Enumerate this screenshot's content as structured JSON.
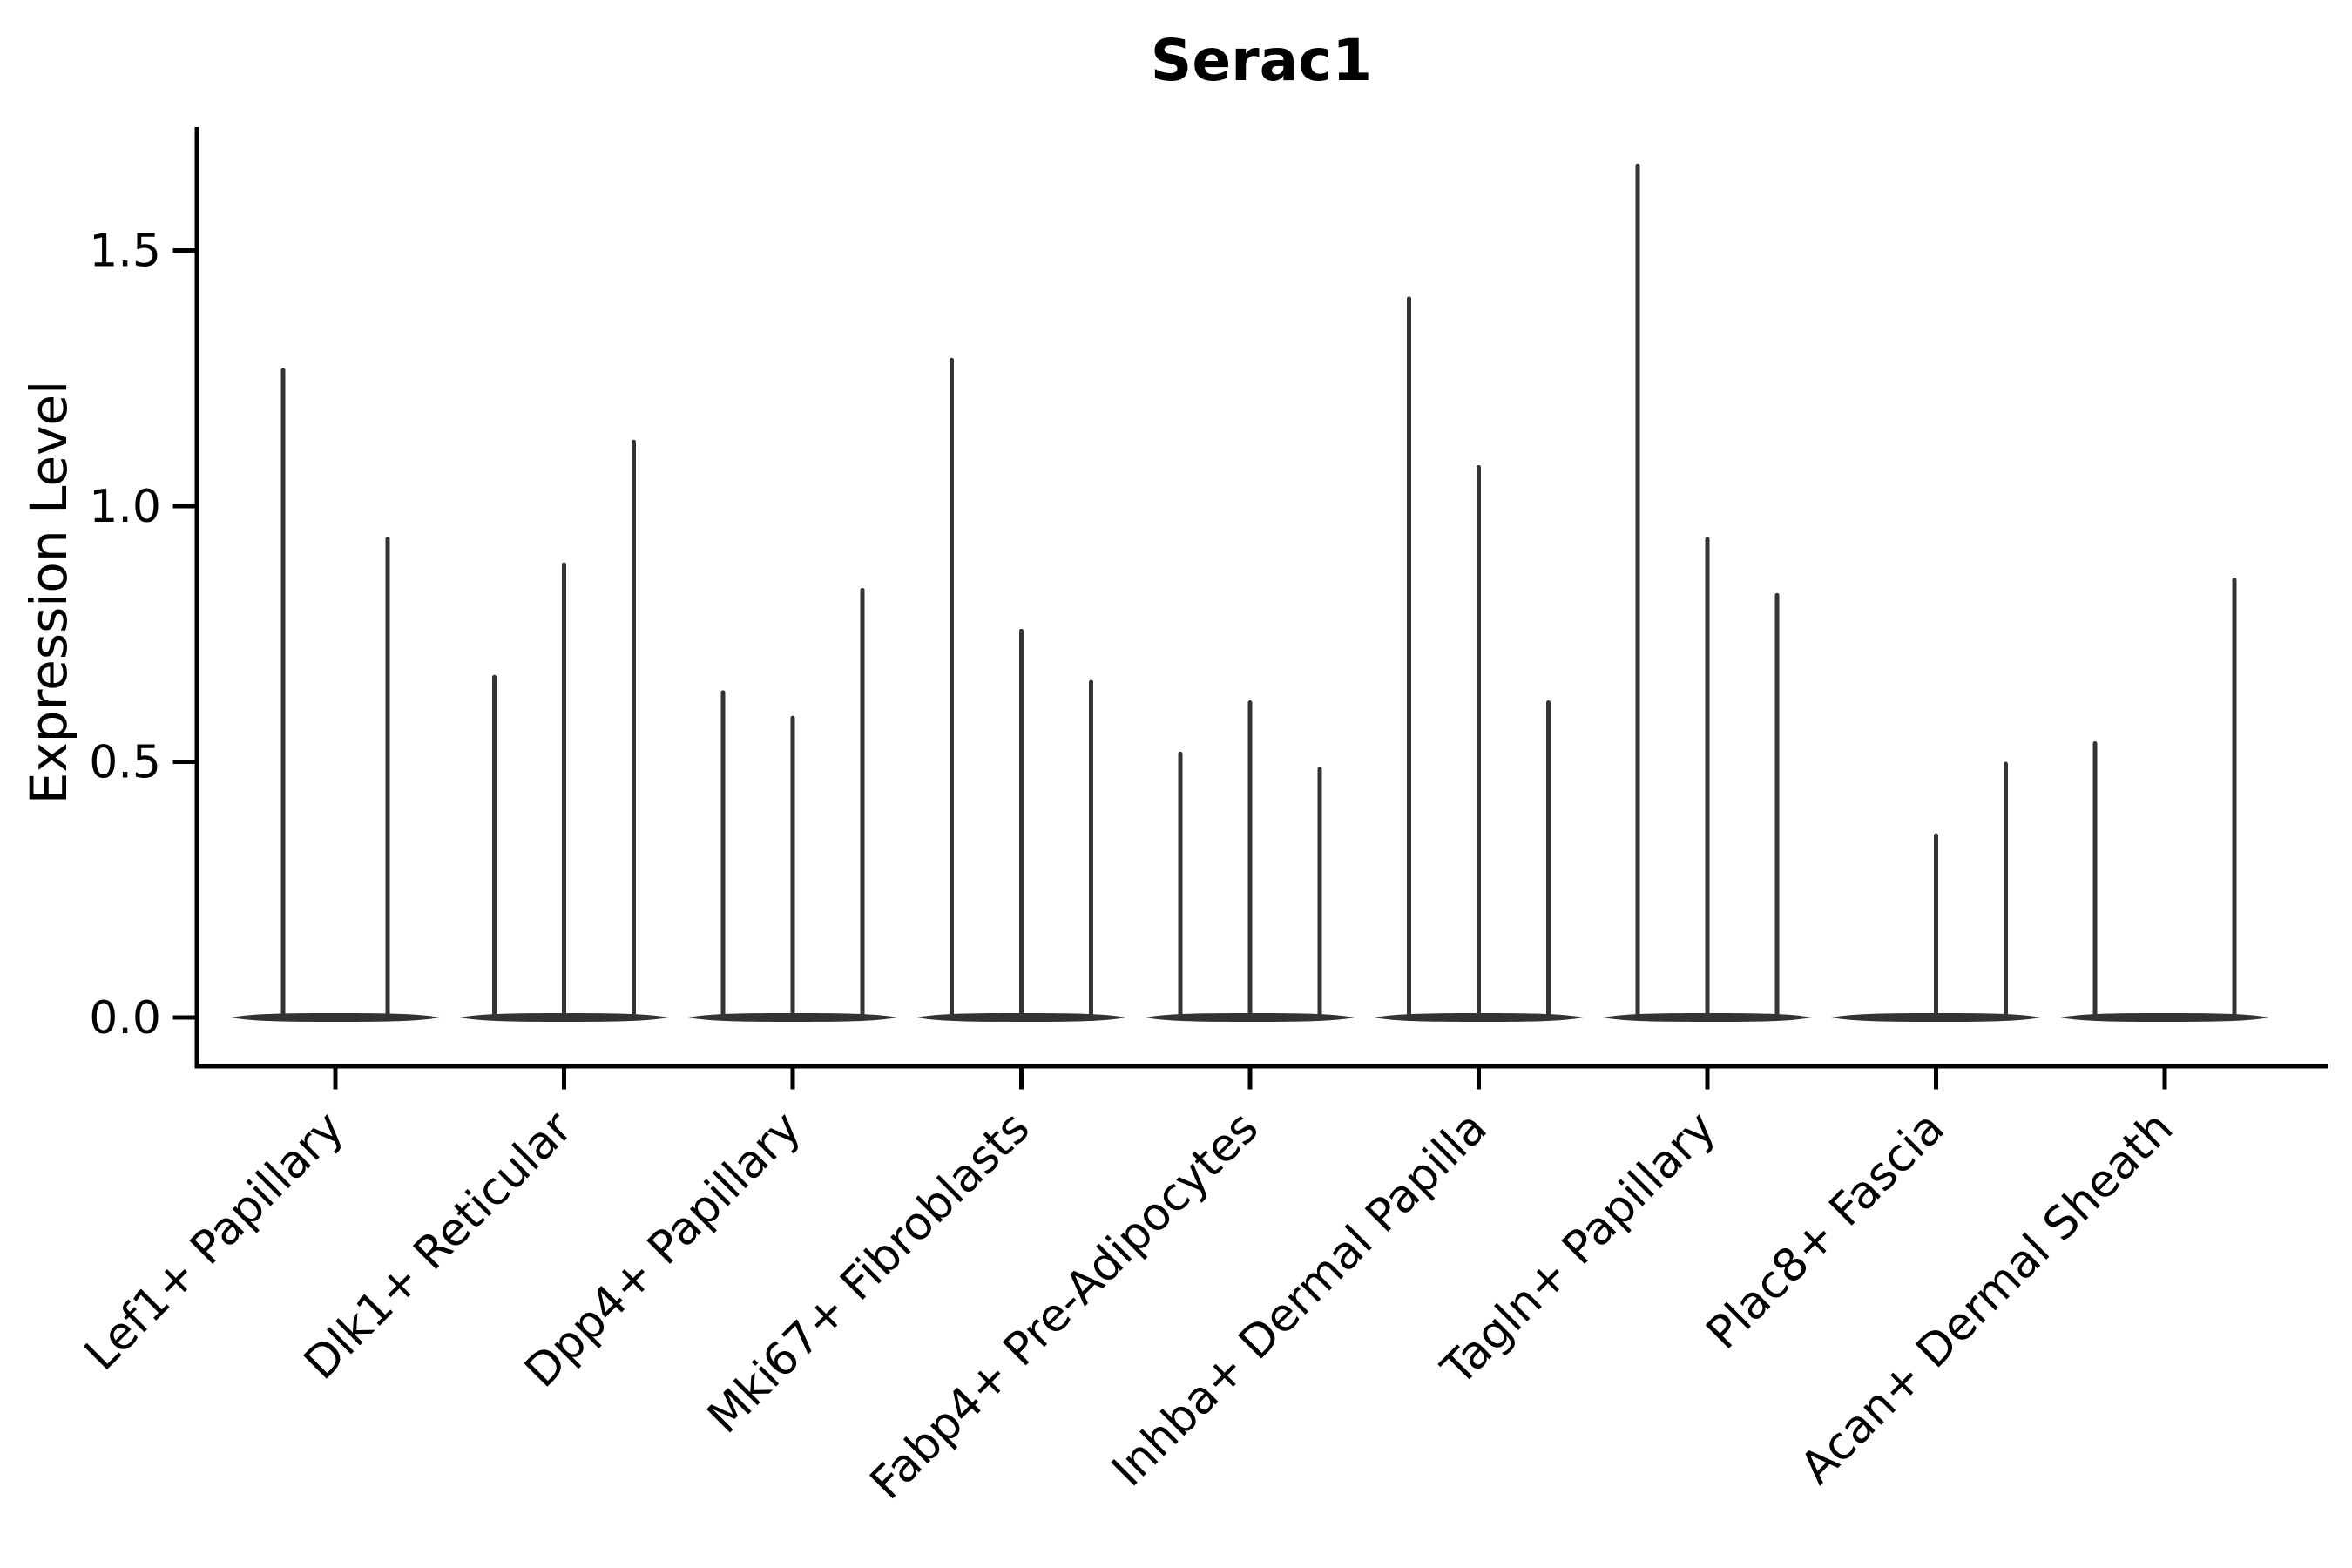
{
  "chart_data": {
    "type": "violin",
    "title": "Serac1",
    "ylabel": "Expression Level",
    "xlabel": "",
    "yticks": [
      "0.0",
      "0.5",
      "1.0",
      "1.5"
    ],
    "ytick_values": [
      0.0,
      0.5,
      1.0,
      1.5
    ],
    "ylim": [
      -0.095,
      1.74
    ],
    "grid": false,
    "legend": "none",
    "categories": [
      "Lef1+ Papillary",
      "Dlk1+ Reticular",
      "Dpp4+ Papillary",
      "Mki67+ Fibroblasts",
      "Fabp4+ Pre-Adipocytes",
      "Inhba+ Dermal Papilla",
      "Tagln+ Papillary",
      "Plac8+ Fascia",
      "Acan+ Dermal Sheath"
    ],
    "groups": [
      {
        "label": "Lef1+ Papillary",
        "violin_max": [
          1.27,
          0.94
        ]
      },
      {
        "label": "Dlk1+ Reticular",
        "violin_max": [
          0.67,
          0.89,
          1.13
        ]
      },
      {
        "label": "Dpp4+ Papillary",
        "violin_max": [
          0.64,
          0.59,
          0.84
        ]
      },
      {
        "label": "Mki67+ Fibroblasts",
        "violin_max": [
          1.29,
          0.76,
          0.66
        ]
      },
      {
        "label": "Fabp4+ Pre-Adipocytes",
        "violin_max": [
          0.52,
          0.62,
          0.49
        ]
      },
      {
        "label": "Inhba+ Dermal Papilla",
        "violin_max": [
          1.41,
          1.08,
          0.62
        ]
      },
      {
        "label": "Tagln+ Papillary",
        "violin_max": [
          1.67,
          0.94,
          0.83
        ]
      },
      {
        "label": "Plac8+ Fascia",
        "violin_max": [
          0,
          0.36,
          0.5
        ]
      },
      {
        "label": "Acan+ Dermal Sheath",
        "violin_max": [
          0.54,
          0,
          0.86
        ]
      }
    ],
    "violin_color": "#333333",
    "axis_color": "#000000",
    "background": "#ffffff"
  }
}
